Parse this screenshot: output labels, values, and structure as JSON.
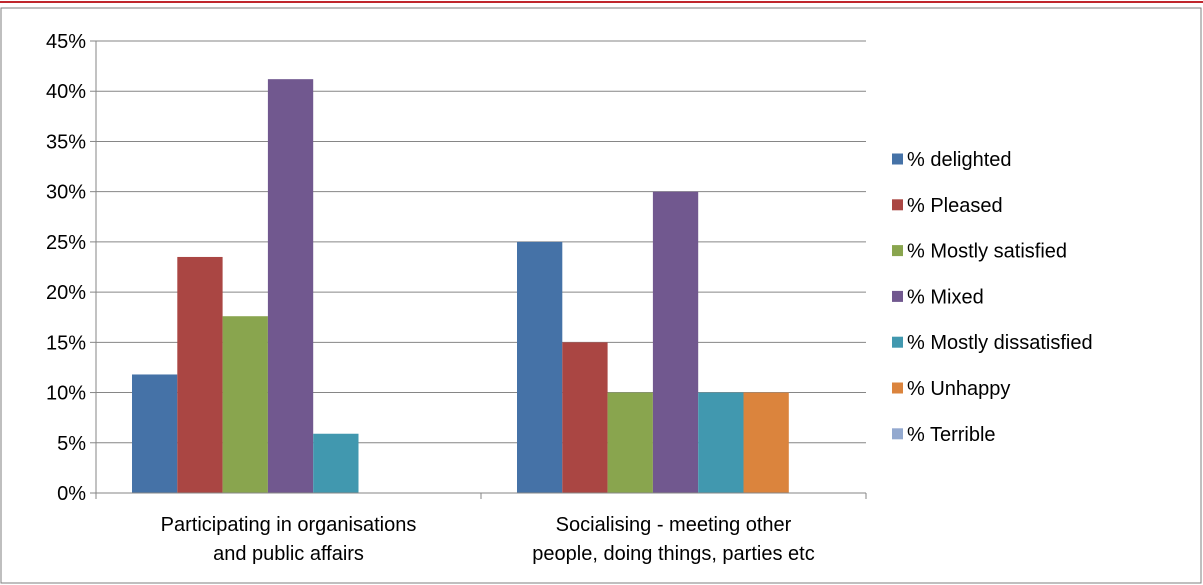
{
  "chart_data": {
    "type": "bar",
    "categories": [
      [
        "Participating in organisations",
        "and public affairs"
      ],
      [
        "Socialising - meeting other",
        "people, doing things, parties etc"
      ]
    ],
    "series": [
      {
        "name": "% delighted",
        "color": "#4572A7",
        "values": [
          11.8,
          25
        ]
      },
      {
        "name": "% Pleased",
        "color": "#AA4643",
        "values": [
          23.5,
          15
        ]
      },
      {
        "name": "% Mostly satisfied",
        "color": "#89A54E",
        "values": [
          17.6,
          10
        ]
      },
      {
        "name": "% Mixed",
        "color": "#71588F",
        "values": [
          41.2,
          30
        ]
      },
      {
        "name": "% Mostly dissatisfied",
        "color": "#4198AF",
        "values": [
          5.9,
          10
        ]
      },
      {
        "name": "% Unhappy",
        "color": "#DB843D",
        "values": [
          0,
          10
        ]
      },
      {
        "name": "% Terrible",
        "color": "#93A9CF",
        "values": [
          0,
          0
        ]
      }
    ],
    "y_ticks": [
      "0%",
      "5%",
      "10%",
      "15%",
      "20%",
      "25%",
      "30%",
      "35%",
      "40%",
      "45%"
    ],
    "ylim": [
      0,
      45
    ],
    "grid": true,
    "legend_position": "right",
    "title": "",
    "xlabel": "",
    "ylabel": ""
  },
  "colors": {
    "top_border": "#C0272D",
    "frame_border": "#7f7f7f",
    "gridline": "#868686"
  }
}
